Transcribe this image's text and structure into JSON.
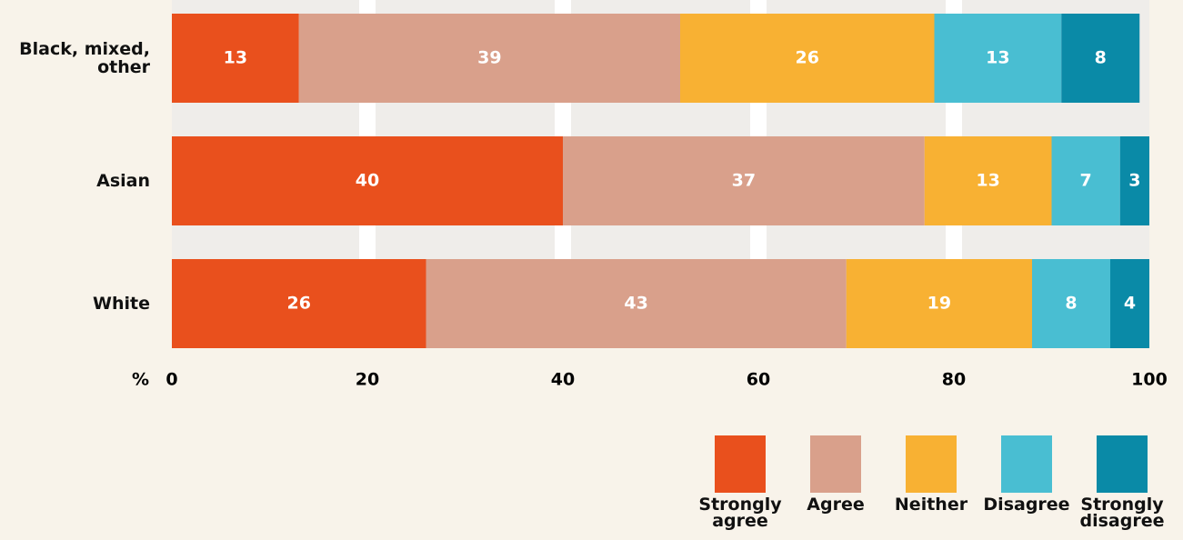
{
  "chart_data": {
    "type": "stacked_bar_horizontal",
    "categories": [
      "Black, mixed, other",
      "Asian",
      "White"
    ],
    "x_label": "%",
    "xlim": [
      0,
      100
    ],
    "xticks": [
      0,
      20,
      40,
      60,
      80,
      100
    ],
    "grid": true,
    "legend": "bottom-right",
    "series": [
      {
        "name": "Strongly agree",
        "color": "#e9501d",
        "values": [
          13,
          40,
          26
        ]
      },
      {
        "name": "Agree",
        "color": "#d9a08b",
        "values": [
          39,
          37,
          43
        ]
      },
      {
        "name": "Neither",
        "color": "#f8b133",
        "values": [
          26,
          13,
          19
        ]
      },
      {
        "name": "Disagree",
        "color": "#49bed2",
        "values": [
          13,
          7,
          8
        ]
      },
      {
        "name": "Strongly disagree",
        "color": "#0a8aa7",
        "values": [
          8,
          3,
          4
        ]
      }
    ]
  }
}
